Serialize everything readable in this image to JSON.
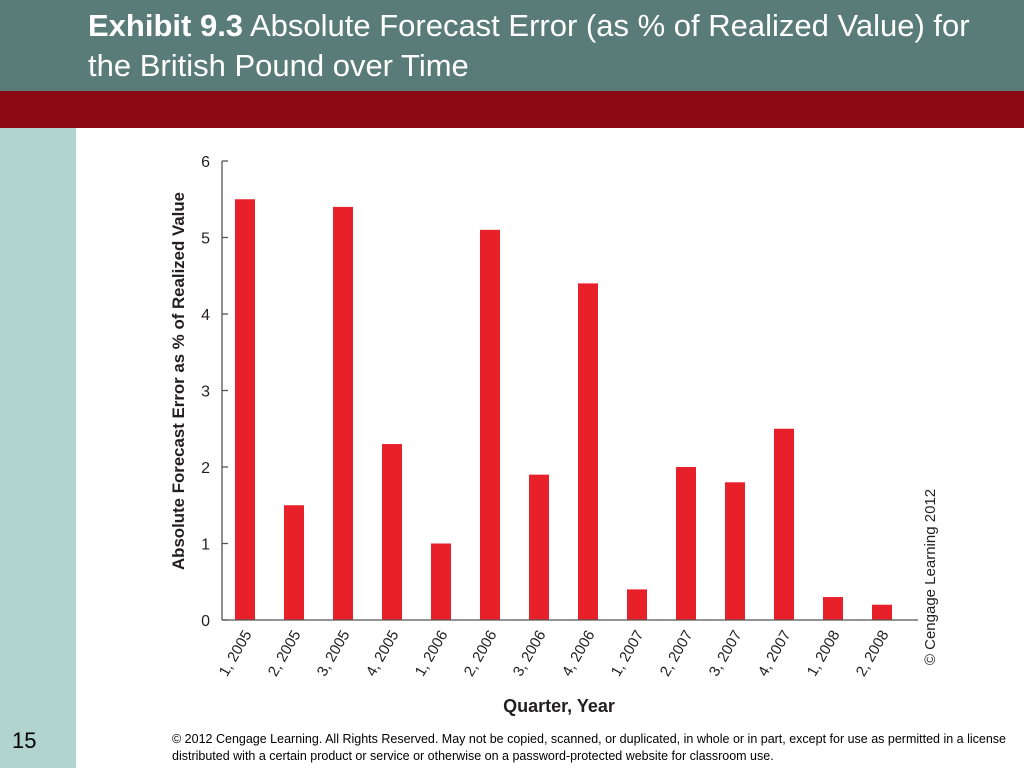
{
  "slide": {
    "title_bold": "Exhibit 9.3",
    "title_rest": "Absolute Forecast Error (as % of Realized Value) for the British Pound over Time",
    "number": "15",
    "copyright": "© 2012 Cengage Learning. All Rights Reserved. May not be copied, scanned, or duplicated, in whole or in part, except for use as permitted in a license distributed with a certain product or service or otherwise on a password-protected website for classroom use."
  },
  "colors": {
    "header": "#5a7c78",
    "accent_bar": "#8b0a14",
    "side_panel": "#b2d4cf",
    "bar": "#e8202a"
  },
  "chart_data": {
    "type": "bar",
    "categories": [
      "1, 2005",
      "2, 2005",
      "3, 2005",
      "4, 2005",
      "1, 2006",
      "2, 2006",
      "3, 2006",
      "4, 2006",
      "1, 2007",
      "2, 2007",
      "3, 2007",
      "4, 2007",
      "1, 2008",
      "2, 2008"
    ],
    "values": [
      5.5,
      1.5,
      5.4,
      2.3,
      1.0,
      5.1,
      1.9,
      4.4,
      0.4,
      2.0,
      1.8,
      2.5,
      0.3,
      0.2
    ],
    "xlabel": "Quarter, Year",
    "ylabel": "Absolute Forecast Error as % of Realized Value",
    "ylim": [
      0,
      6
    ],
    "yticks": [
      0,
      1,
      2,
      3,
      4,
      5,
      6
    ],
    "grid": false,
    "annotation": "© Cengage Learning 2012"
  }
}
